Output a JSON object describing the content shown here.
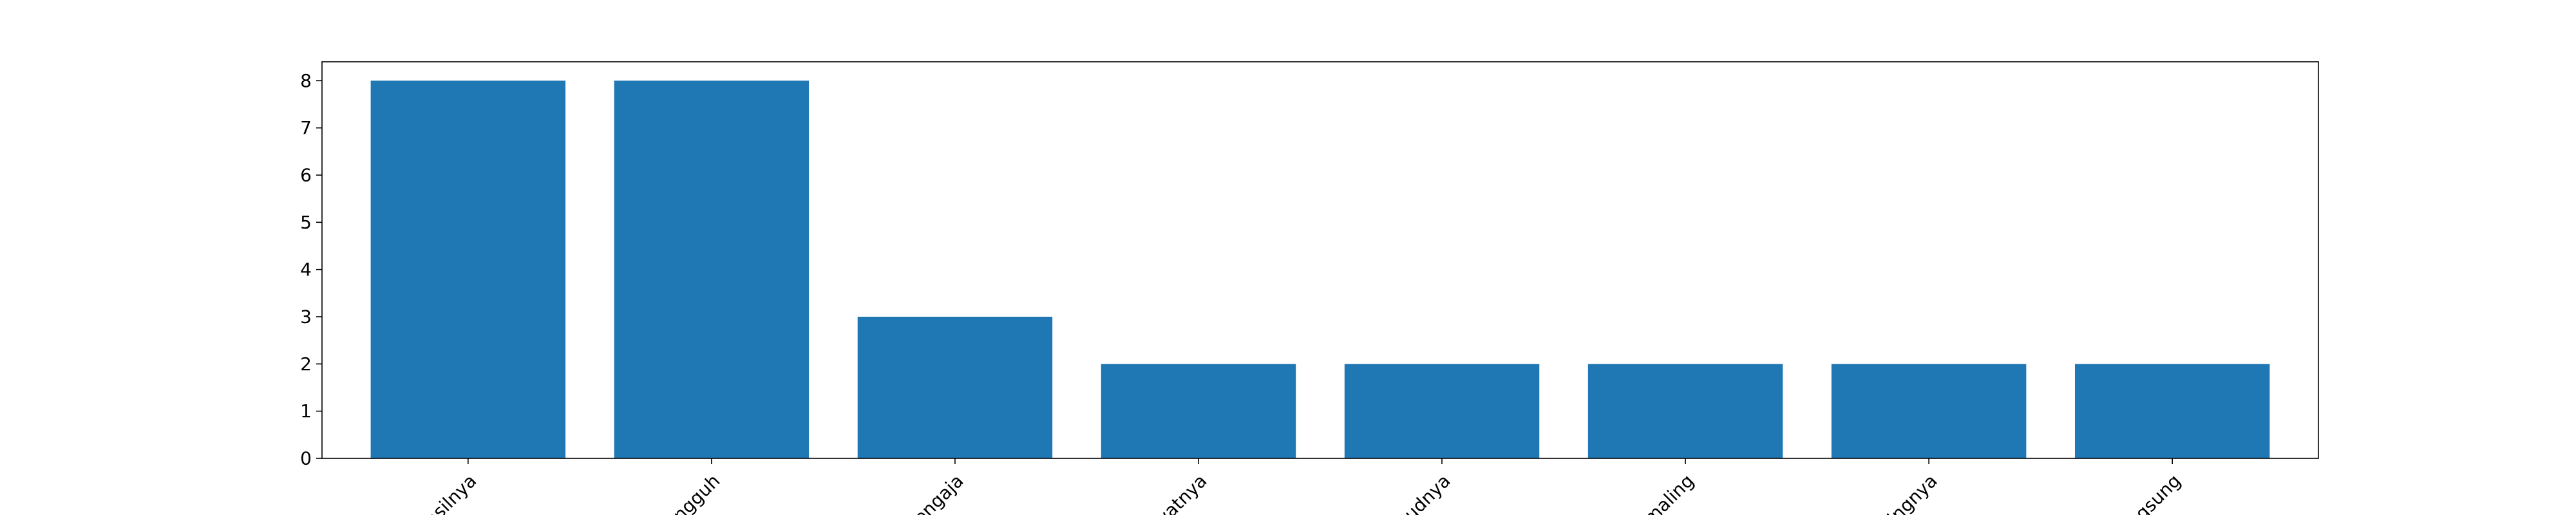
{
  "chart_data": {
    "type": "bar",
    "title": "",
    "xlabel": "",
    "ylabel": "",
    "categories": [
      "asilnya",
      "ungguh",
      "sengaja",
      "yatnya",
      "sudnya",
      "maling",
      "lingnya",
      "ngsung"
    ],
    "values": [
      8,
      8,
      3,
      2,
      2,
      2,
      2,
      2
    ],
    "ylim": [
      0,
      8.4
    ],
    "yticks": [
      0,
      1,
      2,
      3,
      4,
      5,
      6,
      7,
      8
    ],
    "grid": false,
    "legend": "none",
    "colors": {
      "bar": "#1f77b4",
      "axis": "#000000",
      "background": "#ffffff"
    }
  }
}
